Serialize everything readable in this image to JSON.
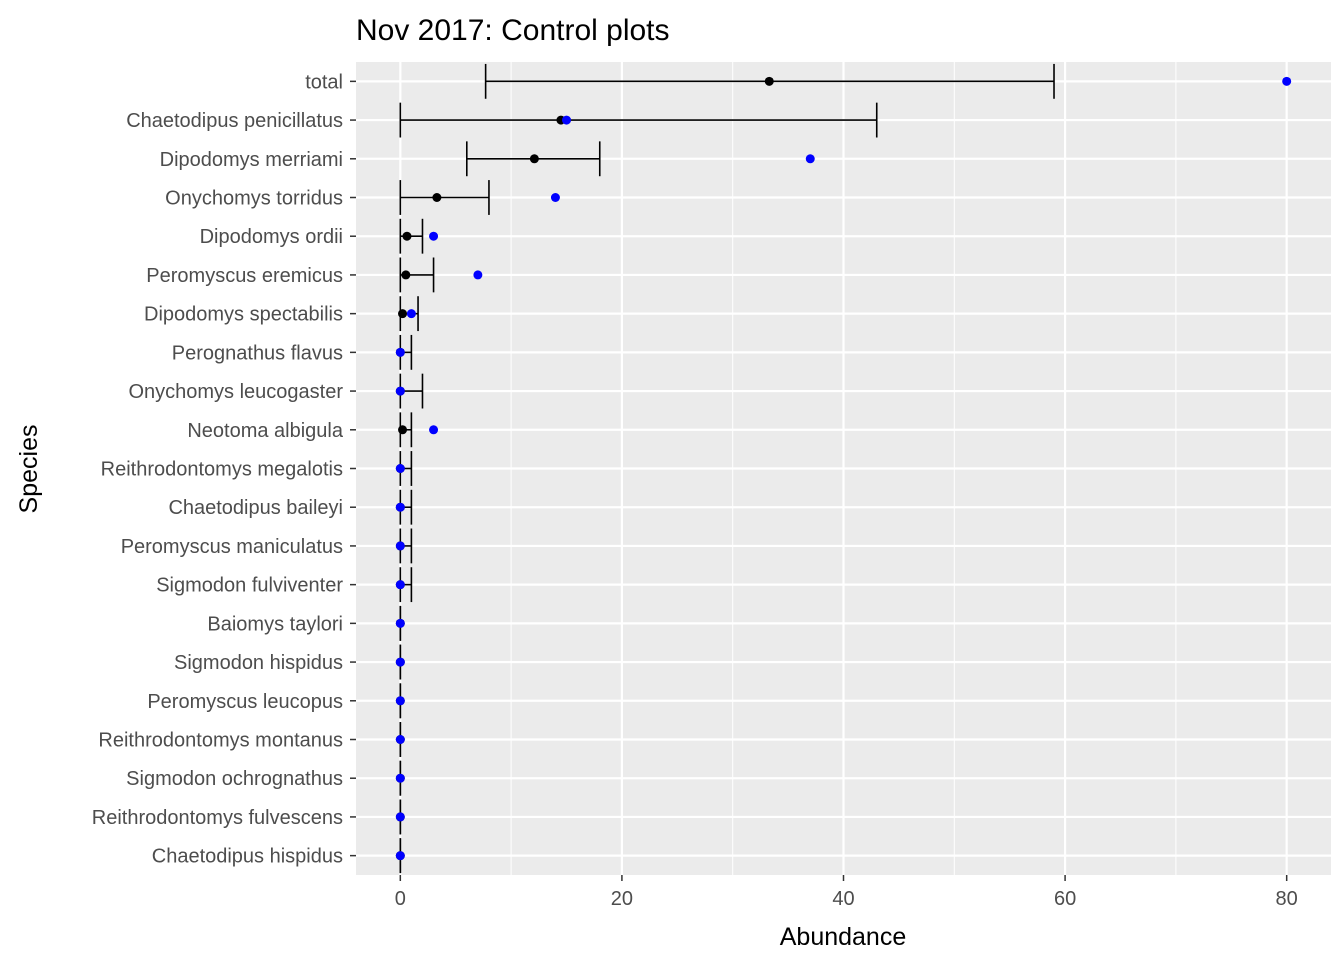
{
  "chart_data": {
    "type": "scatter",
    "title": "Nov 2017: Control plots",
    "xlabel": "Abundance",
    "ylabel": "Species",
    "xlim": [
      -4,
      84
    ],
    "x_ticks": [
      0,
      20,
      40,
      60,
      80
    ],
    "x_tick_labels": [
      "0",
      "20",
      "40",
      "60",
      "80"
    ],
    "grid": true,
    "background": "#ebebeb",
    "categories": [
      "total",
      "Chaetodipus penicillatus",
      "Dipodomys merriami",
      "Onychomys torridus",
      "Dipodomys ordii",
      "Peromyscus eremicus",
      "Dipodomys spectabilis",
      "Perognathus flavus",
      "Onychomys leucogaster",
      "Neotoma albigula",
      "Reithrodontomys megalotis",
      "Chaetodipus baileyi",
      "Peromyscus maniculatus",
      "Sigmodon fulviventer",
      "Baiomys taylori",
      "Sigmodon hispidus",
      "Peromyscus leucopus",
      "Reithrodontomys montanus",
      "Sigmodon ochrognathus",
      "Reithrodontomys fulvescens",
      "Chaetodipus hispidus"
    ],
    "series": [
      {
        "kind": "point-range",
        "color": "#000000",
        "values": [
          33.3,
          14.5,
          12.1,
          3.3,
          0.6,
          0.5,
          0.2,
          0.0,
          0.0,
          0.2,
          0.0,
          0.0,
          0.0,
          0.0,
          0.0,
          0.0,
          0.0,
          0.0,
          0.0,
          0.0,
          0.0
        ],
        "lower": [
          7.7,
          0.0,
          6.0,
          0.0,
          0.0,
          0.0,
          0.0,
          0.0,
          0.0,
          0.0,
          0.0,
          0.0,
          0.0,
          0.0,
          0.0,
          0.0,
          0.0,
          0.0,
          0.0,
          0.0,
          0.0
        ],
        "upper": [
          59.0,
          43.0,
          18.0,
          8.0,
          2.0,
          3.0,
          1.6,
          1.0,
          2.0,
          1.0,
          1.0,
          1.0,
          1.0,
          1.0,
          0.0,
          0.0,
          0.0,
          0.0,
          0.0,
          0.0,
          0.0
        ]
      },
      {
        "kind": "points",
        "color": "#0000ff",
        "values": [
          80,
          15,
          37,
          14,
          3,
          7,
          1,
          0,
          0,
          3,
          0,
          0,
          0,
          0,
          0,
          0,
          0,
          0,
          0,
          0,
          0
        ]
      }
    ]
  }
}
